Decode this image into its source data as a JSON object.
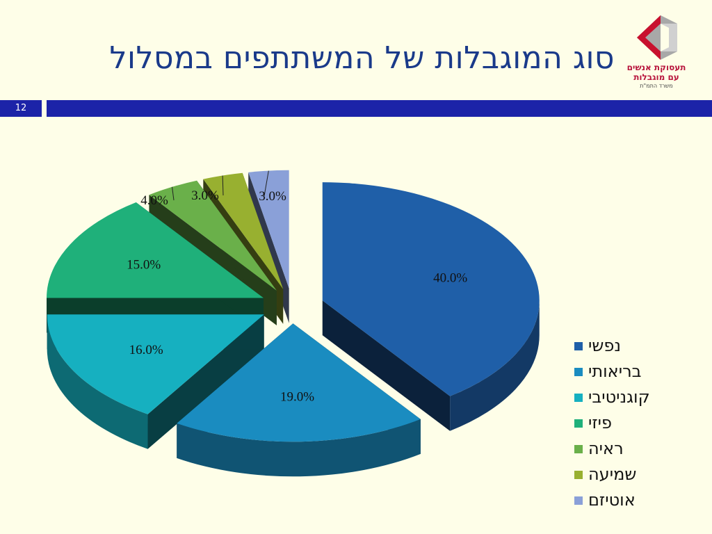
{
  "title": "סוג המוגבלות של המשתתפים במסלול",
  "slide_number": "12",
  "logo": {
    "line1": "תעסוקת אנשים",
    "line2": "עם מוגבלות",
    "line3": "משרד התמ\"ת",
    "colors": {
      "red": "#c8102e",
      "gray": "#a8a8a8"
    }
  },
  "colors": {
    "background": "#fefee8",
    "title": "#1a3a8a",
    "band": "#1c23a8"
  },
  "chart_data": {
    "type": "pie",
    "style": "3d-exploded",
    "categories": [
      "נפשי",
      "בריאותי",
      "קוגניטיבי",
      "פיזי",
      "ראיה",
      "שמיעה",
      "אוטיזם"
    ],
    "values": [
      40.0,
      19.0,
      16.0,
      15.0,
      4.0,
      3.0,
      3.0
    ],
    "labels": [
      "40.0%",
      "19.0%",
      "16.0%",
      "15.0%",
      "4.0%",
      "3.0%",
      "3.0%"
    ],
    "colors": [
      "#1f5fa8",
      "#1a8cc0",
      "#16b0c0",
      "#1fb07a",
      "#6ab04a",
      "#98b030",
      "#8aa0d8"
    ],
    "legend_position": "right"
  }
}
